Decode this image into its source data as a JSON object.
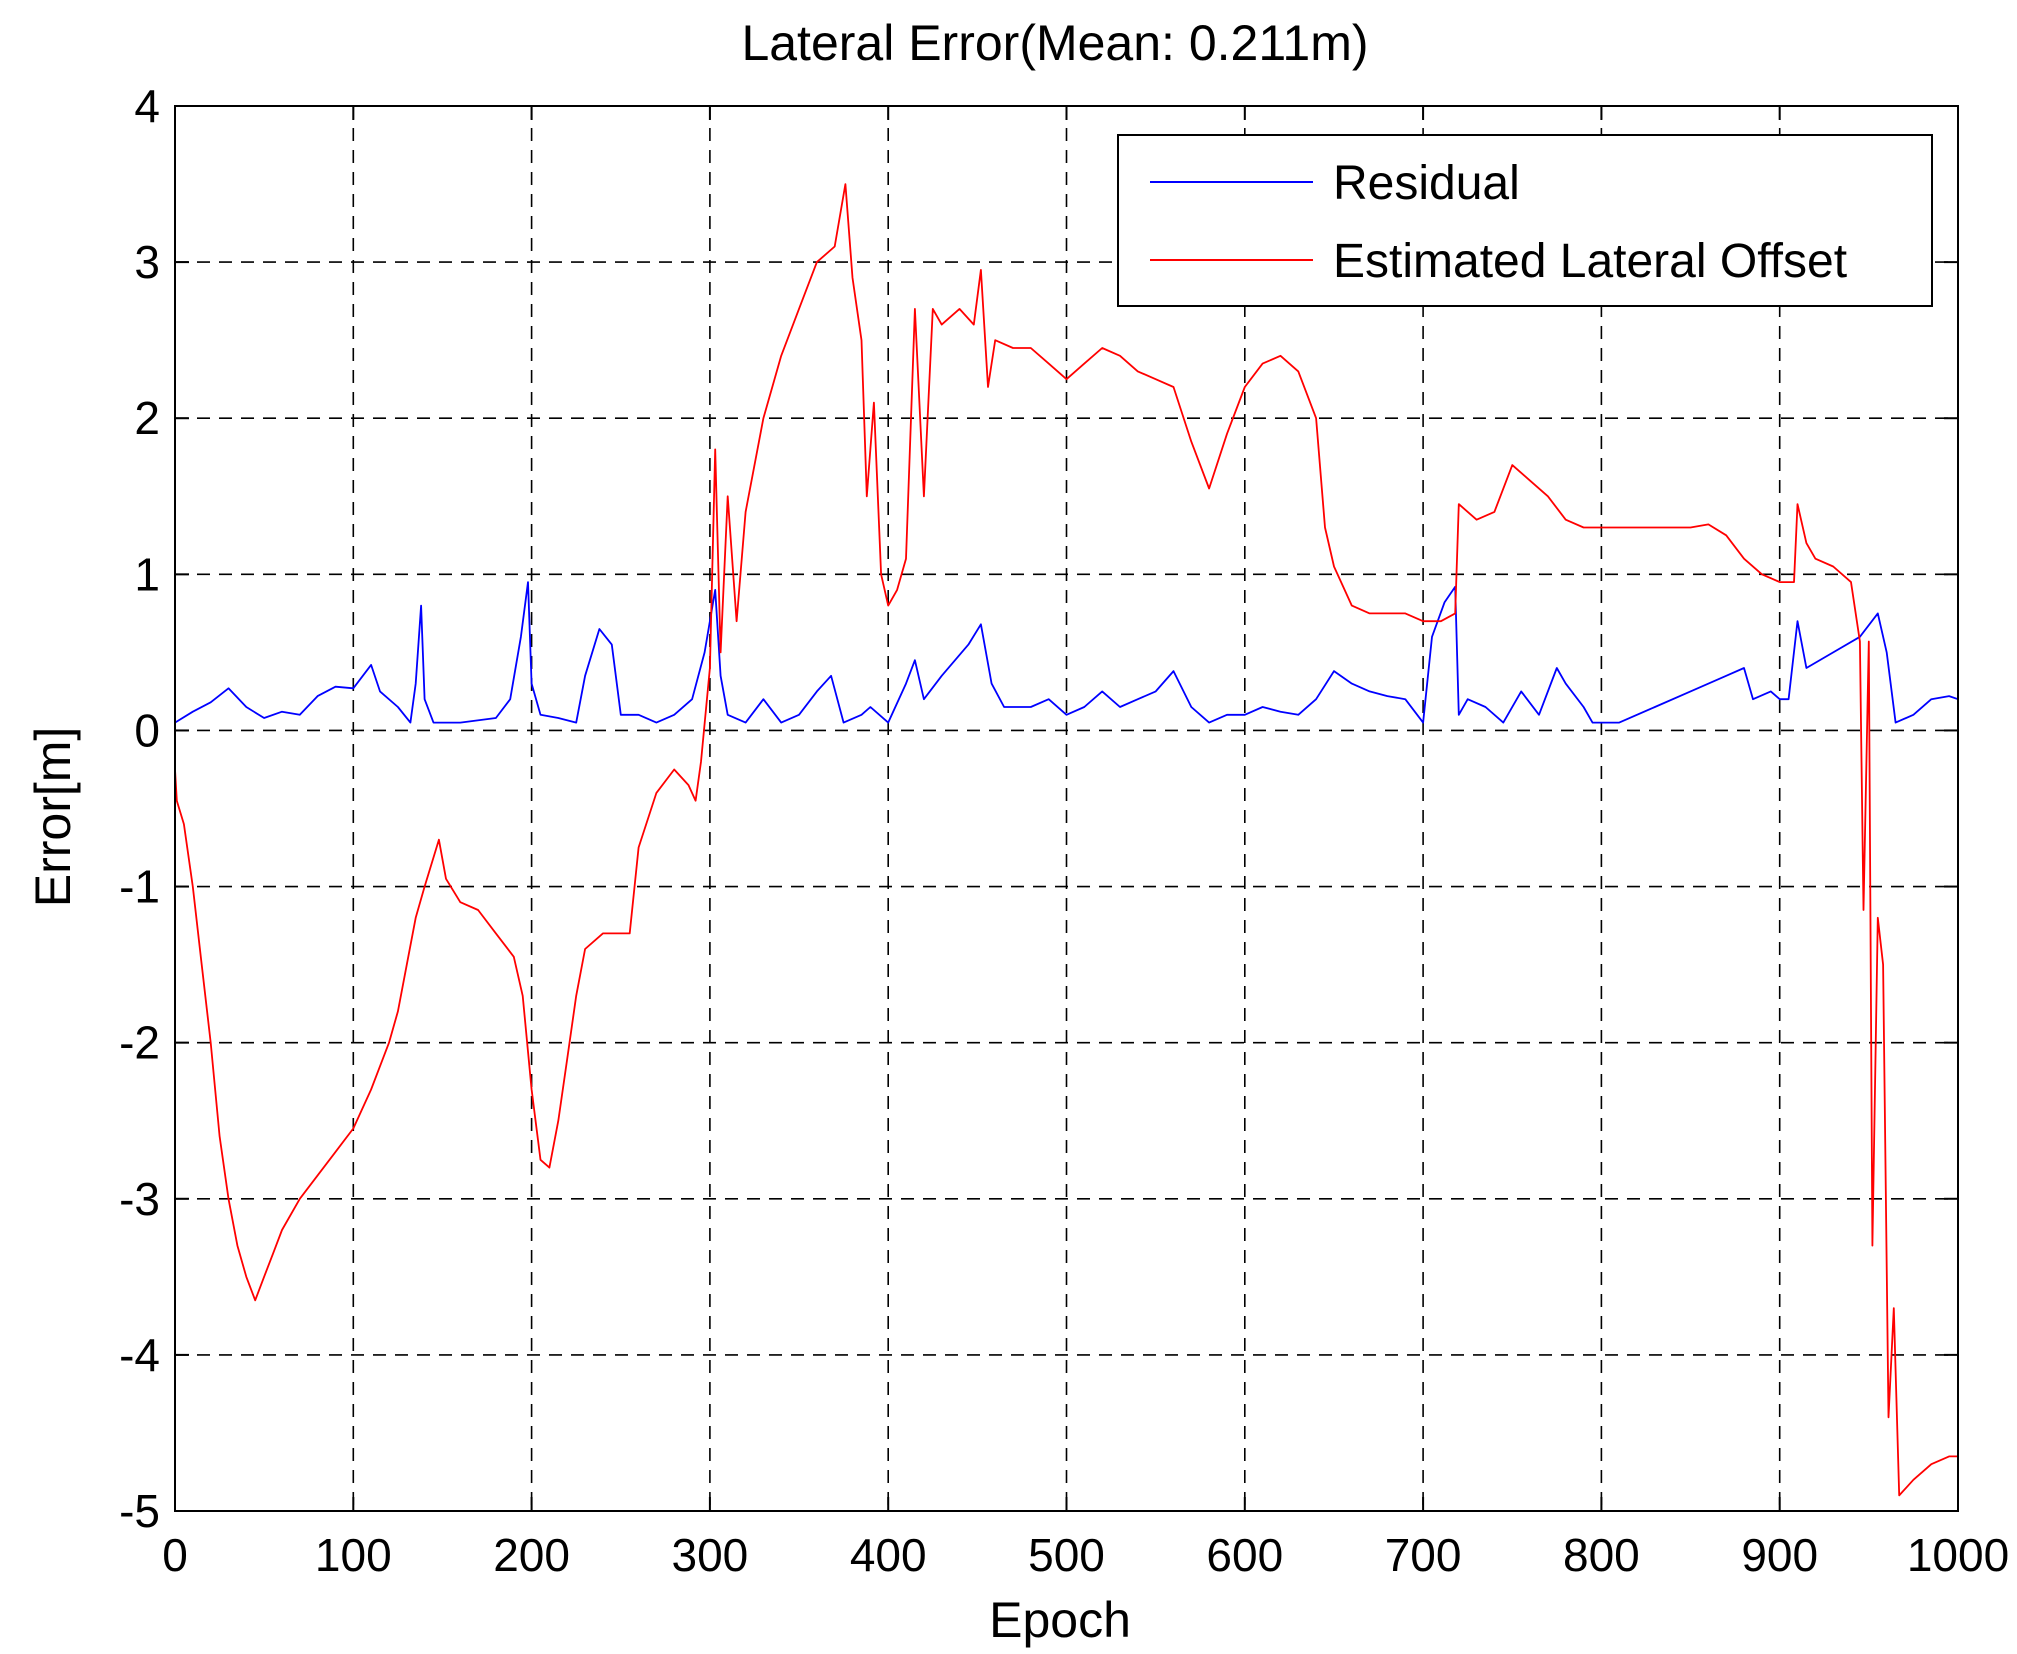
{
  "chart_data": {
    "type": "line",
    "title": "Lateral Error(Mean: 0.211m)",
    "xlabel": "Epoch",
    "ylabel": "Error[m]",
    "xlim": [
      0,
      1000
    ],
    "ylim": [
      -5,
      4
    ],
    "xticks": [
      0,
      100,
      200,
      300,
      400,
      500,
      600,
      700,
      800,
      900,
      1000
    ],
    "yticks": [
      -5,
      -4,
      -3,
      -2,
      -1,
      0,
      1,
      2,
      3,
      4
    ],
    "xtick_labels": [
      "0",
      "100",
      "200",
      "300",
      "400",
      "500",
      "600",
      "700",
      "800",
      "900",
      "1000"
    ],
    "ytick_labels": [
      "-5",
      "-4",
      "-3",
      "-2",
      "-1",
      "0",
      "1",
      "2",
      "3",
      "4"
    ],
    "grid": true,
    "legend_position": "top-right",
    "series": [
      {
        "name": "Residual",
        "color": "#0000ff",
        "points": [
          [
            0,
            0.05
          ],
          [
            10,
            0.12
          ],
          [
            20,
            0.18
          ],
          [
            30,
            0.27
          ],
          [
            40,
            0.15
          ],
          [
            50,
            0.08
          ],
          [
            60,
            0.12
          ],
          [
            70,
            0.1
          ],
          [
            80,
            0.22
          ],
          [
            90,
            0.28
          ],
          [
            100,
            0.27
          ],
          [
            110,
            0.42
          ],
          [
            115,
            0.25
          ],
          [
            125,
            0.15
          ],
          [
            132,
            0.05
          ],
          [
            135,
            0.3
          ],
          [
            138,
            0.8
          ],
          [
            140,
            0.2
          ],
          [
            145,
            0.05
          ],
          [
            160,
            0.05
          ],
          [
            180,
            0.08
          ],
          [
            188,
            0.2
          ],
          [
            194,
            0.6
          ],
          [
            198,
            0.95
          ],
          [
            200,
            0.3
          ],
          [
            205,
            0.1
          ],
          [
            215,
            0.08
          ],
          [
            225,
            0.05
          ],
          [
            230,
            0.35
          ],
          [
            238,
            0.65
          ],
          [
            245,
            0.55
          ],
          [
            250,
            0.1
          ],
          [
            260,
            0.1
          ],
          [
            270,
            0.05
          ],
          [
            280,
            0.1
          ],
          [
            290,
            0.2
          ],
          [
            297,
            0.5
          ],
          [
            303,
            0.9
          ],
          [
            306,
            0.35
          ],
          [
            310,
            0.1
          ],
          [
            320,
            0.05
          ],
          [
            330,
            0.2
          ],
          [
            340,
            0.05
          ],
          [
            350,
            0.1
          ],
          [
            360,
            0.25
          ],
          [
            368,
            0.35
          ],
          [
            375,
            0.05
          ],
          [
            385,
            0.1
          ],
          [
            390,
            0.15
          ],
          [
            400,
            0.05
          ],
          [
            410,
            0.3
          ],
          [
            415,
            0.45
          ],
          [
            420,
            0.2
          ],
          [
            430,
            0.35
          ],
          [
            445,
            0.55
          ],
          [
            452,
            0.68
          ],
          [
            458,
            0.3
          ],
          [
            465,
            0.15
          ],
          [
            480,
            0.15
          ],
          [
            490,
            0.2
          ],
          [
            500,
            0.1
          ],
          [
            510,
            0.15
          ],
          [
            520,
            0.25
          ],
          [
            530,
            0.15
          ],
          [
            540,
            0.2
          ],
          [
            550,
            0.25
          ],
          [
            560,
            0.38
          ],
          [
            570,
            0.15
          ],
          [
            580,
            0.05
          ],
          [
            590,
            0.1
          ],
          [
            600,
            0.1
          ],
          [
            610,
            0.15
          ],
          [
            620,
            0.12
          ],
          [
            630,
            0.1
          ],
          [
            640,
            0.2
          ],
          [
            650,
            0.38
          ],
          [
            660,
            0.3
          ],
          [
            670,
            0.25
          ],
          [
            680,
            0.22
          ],
          [
            690,
            0.2
          ],
          [
            700,
            0.05
          ],
          [
            705,
            0.6
          ],
          [
            712,
            0.82
          ],
          [
            718,
            0.92
          ],
          [
            720,
            0.1
          ],
          [
            725,
            0.2
          ],
          [
            735,
            0.15
          ],
          [
            745,
            0.05
          ],
          [
            755,
            0.25
          ],
          [
            765,
            0.1
          ],
          [
            775,
            0.4
          ],
          [
            780,
            0.3
          ],
          [
            790,
            0.15
          ],
          [
            795,
            0.05
          ],
          [
            800,
            0.05
          ],
          [
            810,
            0.05
          ],
          [
            830,
            0.15
          ],
          [
            850,
            0.25
          ],
          [
            870,
            0.35
          ],
          [
            880,
            0.4
          ],
          [
            885,
            0.2
          ],
          [
            895,
            0.25
          ],
          [
            900,
            0.2
          ],
          [
            905,
            0.2
          ],
          [
            910,
            0.7
          ],
          [
            915,
            0.4
          ],
          [
            930,
            0.5
          ],
          [
            945,
            0.6
          ],
          [
            955,
            0.75
          ],
          [
            960,
            0.5
          ],
          [
            965,
            0.05
          ],
          [
            975,
            0.1
          ],
          [
            985,
            0.2
          ],
          [
            995,
            0.22
          ],
          [
            1000,
            0.2
          ]
        ]
      },
      {
        "name": "Estimated Lateral Offset",
        "color": "#ff0000",
        "points": [
          [
            0,
            -0.25
          ],
          [
            1,
            -0.45
          ],
          [
            5,
            -0.6
          ],
          [
            10,
            -1.0
          ],
          [
            15,
            -1.5
          ],
          [
            20,
            -2.0
          ],
          [
            25,
            -2.6
          ],
          [
            30,
            -3.0
          ],
          [
            35,
            -3.3
          ],
          [
            40,
            -3.5
          ],
          [
            45,
            -3.65
          ],
          [
            50,
            -3.5
          ],
          [
            55,
            -3.35
          ],
          [
            60,
            -3.2
          ],
          [
            70,
            -3.0
          ],
          [
            80,
            -2.85
          ],
          [
            90,
            -2.7
          ],
          [
            100,
            -2.55
          ],
          [
            110,
            -2.3
          ],
          [
            120,
            -2.0
          ],
          [
            125,
            -1.8
          ],
          [
            130,
            -1.5
          ],
          [
            135,
            -1.2
          ],
          [
            140,
            -1.0
          ],
          [
            148,
            -0.7
          ],
          [
            152,
            -0.95
          ],
          [
            160,
            -1.1
          ],
          [
            170,
            -1.15
          ],
          [
            180,
            -1.3
          ],
          [
            190,
            -1.45
          ],
          [
            195,
            -1.7
          ],
          [
            200,
            -2.3
          ],
          [
            205,
            -2.75
          ],
          [
            210,
            -2.8
          ],
          [
            215,
            -2.5
          ],
          [
            220,
            -2.1
          ],
          [
            225,
            -1.7
          ],
          [
            230,
            -1.4
          ],
          [
            240,
            -1.3
          ],
          [
            255,
            -1.3
          ],
          [
            260,
            -0.75
          ],
          [
            270,
            -0.4
          ],
          [
            280,
            -0.25
          ],
          [
            288,
            -0.35
          ],
          [
            292,
            -0.45
          ],
          [
            295,
            -0.2
          ],
          [
            300,
            0.4
          ],
          [
            303,
            1.8
          ],
          [
            306,
            0.5
          ],
          [
            310,
            1.5
          ],
          [
            315,
            0.7
          ],
          [
            320,
            1.4
          ],
          [
            330,
            2.0
          ],
          [
            340,
            2.4
          ],
          [
            350,
            2.7
          ],
          [
            360,
            3.0
          ],
          [
            370,
            3.1
          ],
          [
            376,
            3.5
          ],
          [
            380,
            2.9
          ],
          [
            385,
            2.5
          ],
          [
            388,
            1.5
          ],
          [
            392,
            2.1
          ],
          [
            396,
            1.0
          ],
          [
            400,
            0.8
          ],
          [
            405,
            0.9
          ],
          [
            410,
            1.1
          ],
          [
            415,
            2.7
          ],
          [
            420,
            1.5
          ],
          [
            425,
            2.7
          ],
          [
            430,
            2.6
          ],
          [
            440,
            2.7
          ],
          [
            448,
            2.6
          ],
          [
            452,
            2.95
          ],
          [
            456,
            2.2
          ],
          [
            460,
            2.5
          ],
          [
            470,
            2.45
          ],
          [
            480,
            2.45
          ],
          [
            490,
            2.35
          ],
          [
            500,
            2.25
          ],
          [
            510,
            2.35
          ],
          [
            520,
            2.45
          ],
          [
            530,
            2.4
          ],
          [
            540,
            2.3
          ],
          [
            550,
            2.25
          ],
          [
            560,
            2.2
          ],
          [
            570,
            1.85
          ],
          [
            580,
            1.55
          ],
          [
            590,
            1.9
          ],
          [
            600,
            2.2
          ],
          [
            610,
            2.35
          ],
          [
            620,
            2.4
          ],
          [
            630,
            2.3
          ],
          [
            640,
            2.0
          ],
          [
            645,
            1.3
          ],
          [
            650,
            1.05
          ],
          [
            660,
            0.8
          ],
          [
            670,
            0.75
          ],
          [
            680,
            0.75
          ],
          [
            690,
            0.75
          ],
          [
            700,
            0.7
          ],
          [
            710,
            0.7
          ],
          [
            718,
            0.75
          ],
          [
            720,
            1.45
          ],
          [
            730,
            1.35
          ],
          [
            740,
            1.4
          ],
          [
            750,
            1.7
          ],
          [
            760,
            1.6
          ],
          [
            770,
            1.5
          ],
          [
            780,
            1.35
          ],
          [
            790,
            1.3
          ],
          [
            810,
            1.3
          ],
          [
            830,
            1.3
          ],
          [
            850,
            1.3
          ],
          [
            860,
            1.32
          ],
          [
            870,
            1.25
          ],
          [
            880,
            1.1
          ],
          [
            890,
            1.0
          ],
          [
            900,
            0.95
          ],
          [
            908,
            0.95
          ],
          [
            910,
            1.45
          ],
          [
            915,
            1.2
          ],
          [
            920,
            1.1
          ],
          [
            930,
            1.05
          ],
          [
            940,
            0.95
          ],
          [
            945,
            0.57
          ],
          [
            947,
            -1.15
          ],
          [
            950,
            0.57
          ],
          [
            952,
            -3.3
          ],
          [
            955,
            -1.2
          ],
          [
            958,
            -1.5
          ],
          [
            961,
            -4.4
          ],
          [
            964,
            -3.7
          ],
          [
            967,
            -4.9
          ],
          [
            975,
            -4.8
          ],
          [
            985,
            -4.7
          ],
          [
            995,
            -4.65
          ],
          [
            1000,
            -4.65
          ]
        ]
      }
    ]
  }
}
